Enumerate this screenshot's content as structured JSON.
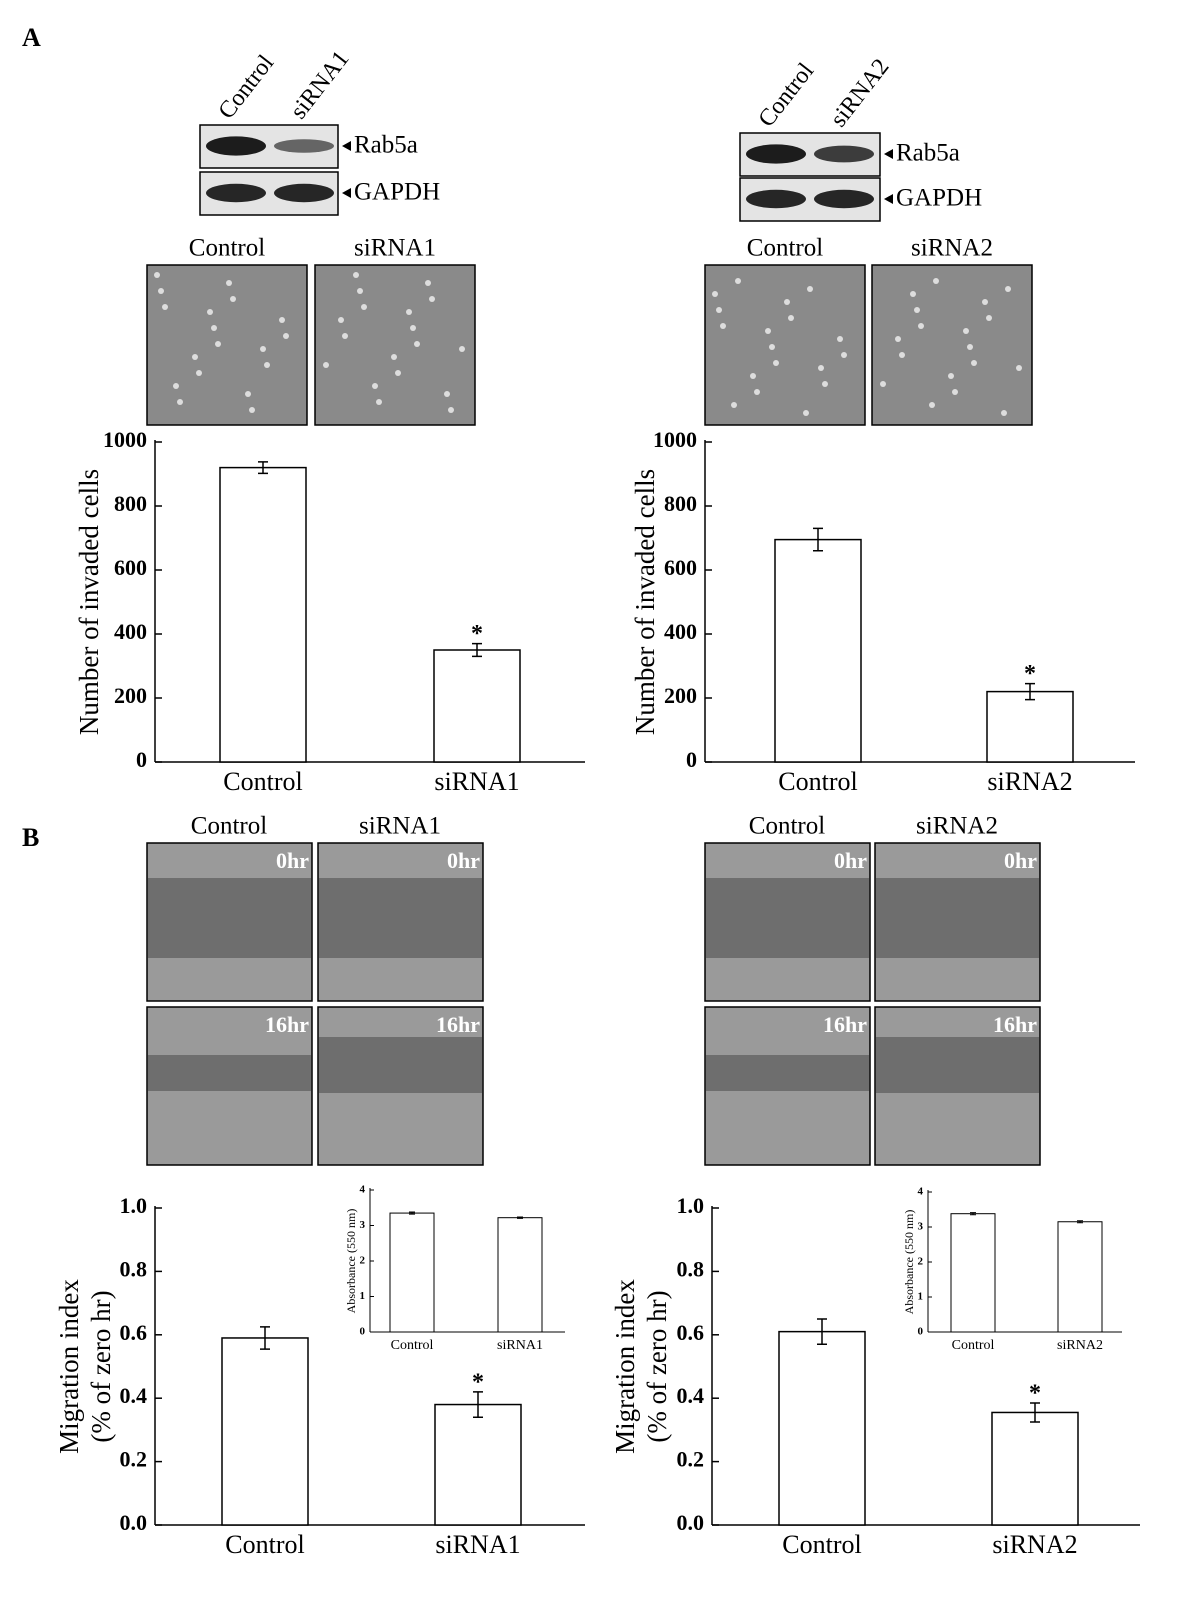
{
  "panel_labels": [
    "A",
    "B"
  ],
  "blots": [
    {
      "lanes": [
        "Control",
        "siRNA1"
      ],
      "bands": [
        "Rab5a",
        "GAPDH"
      ]
    },
    {
      "lanes": [
        "Control",
        "siRNA2"
      ],
      "bands": [
        "Rab5a",
        "GAPDH"
      ]
    }
  ],
  "invasion_images": [
    {
      "labels": [
        "Control",
        "siRNA1"
      ]
    },
    {
      "labels": [
        "Control",
        "siRNA2"
      ]
    }
  ],
  "migration_images": [
    {
      "labels": [
        "Control",
        "siRNA1"
      ],
      "times": [
        "0hr",
        "16hr"
      ]
    },
    {
      "labels": [
        "Control",
        "siRNA2"
      ],
      "times": [
        "0hr",
        "16hr"
      ]
    }
  ],
  "chart_data": [
    {
      "type": "bar",
      "y_label": "Number of invaded cells",
      "categories": [
        "Control",
        "siRNA1"
      ],
      "values": [
        920,
        350
      ],
      "errors": [
        18,
        20
      ],
      "annotations": [
        null,
        "*"
      ],
      "color": "#ffffff",
      "edge_color": "#000000",
      "ylim": [
        0,
        1000
      ],
      "yticks": [
        0,
        200,
        400,
        600,
        800,
        1000
      ]
    },
    {
      "type": "bar",
      "y_label": "Number of invaded cells",
      "categories": [
        "Control",
        "siRNA2"
      ],
      "values": [
        695,
        220
      ],
      "errors": [
        35,
        25
      ],
      "annotations": [
        null,
        "*"
      ],
      "color": "#ffffff",
      "edge_color": "#000000",
      "ylim": [
        0,
        1000
      ],
      "yticks": [
        0,
        200,
        400,
        600,
        800,
        1000
      ]
    },
    {
      "type": "bar",
      "y_label": [
        "Migration index",
        "(% of zero hr)"
      ],
      "categories": [
        "Control",
        "siRNA1"
      ],
      "values": [
        0.59,
        0.38
      ],
      "errors": [
        0.035,
        0.04
      ],
      "annotations": [
        null,
        "*"
      ],
      "color": "#ffffff",
      "edge_color": "#000000",
      "ylim": [
        0,
        1.0
      ],
      "yticks": [
        {
          "value": 0,
          "label": "0.0"
        },
        0.2,
        0.4,
        0.6,
        0.8,
        {
          "value": 1,
          "label": "1.0"
        }
      ]
    },
    {
      "type": "bar",
      "y_label": [
        "Migration index",
        "(% of zero hr)"
      ],
      "categories": [
        "Control",
        "siRNA2"
      ],
      "values": [
        0.61,
        0.355
      ],
      "errors": [
        0.04,
        0.03
      ],
      "annotations": [
        null,
        "*"
      ],
      "color": "#ffffff",
      "edge_color": "#000000",
      "ylim": [
        0,
        1.0
      ],
      "yticks": [
        {
          "value": 0,
          "label": "0.0"
        },
        0.2,
        0.4,
        0.6,
        0.8,
        {
          "value": 1,
          "label": "1.0"
        }
      ]
    },
    {
      "type": "bar",
      "y_label": "Absorbance (550 nm)",
      "categories": [
        "Control",
        "siRNA1"
      ],
      "values": [
        3.35,
        3.22
      ],
      "errors": [
        0.03,
        0.02
      ],
      "color": "#ffffff",
      "edge_color": "#000000",
      "ylim": [
        0,
        4
      ],
      "yticks": [
        0,
        1,
        2,
        3,
        4
      ]
    },
    {
      "type": "bar",
      "y_label": "Absorbance (550 nm)",
      "categories": [
        "Control",
        "siRNA2"
      ],
      "values": [
        3.38,
        3.15
      ],
      "errors": [
        0.03,
        0.03
      ],
      "color": "#ffffff",
      "edge_color": "#000000",
      "ylim": [
        0,
        4
      ],
      "yticks": [
        0,
        1,
        2,
        3,
        4
      ]
    }
  ]
}
